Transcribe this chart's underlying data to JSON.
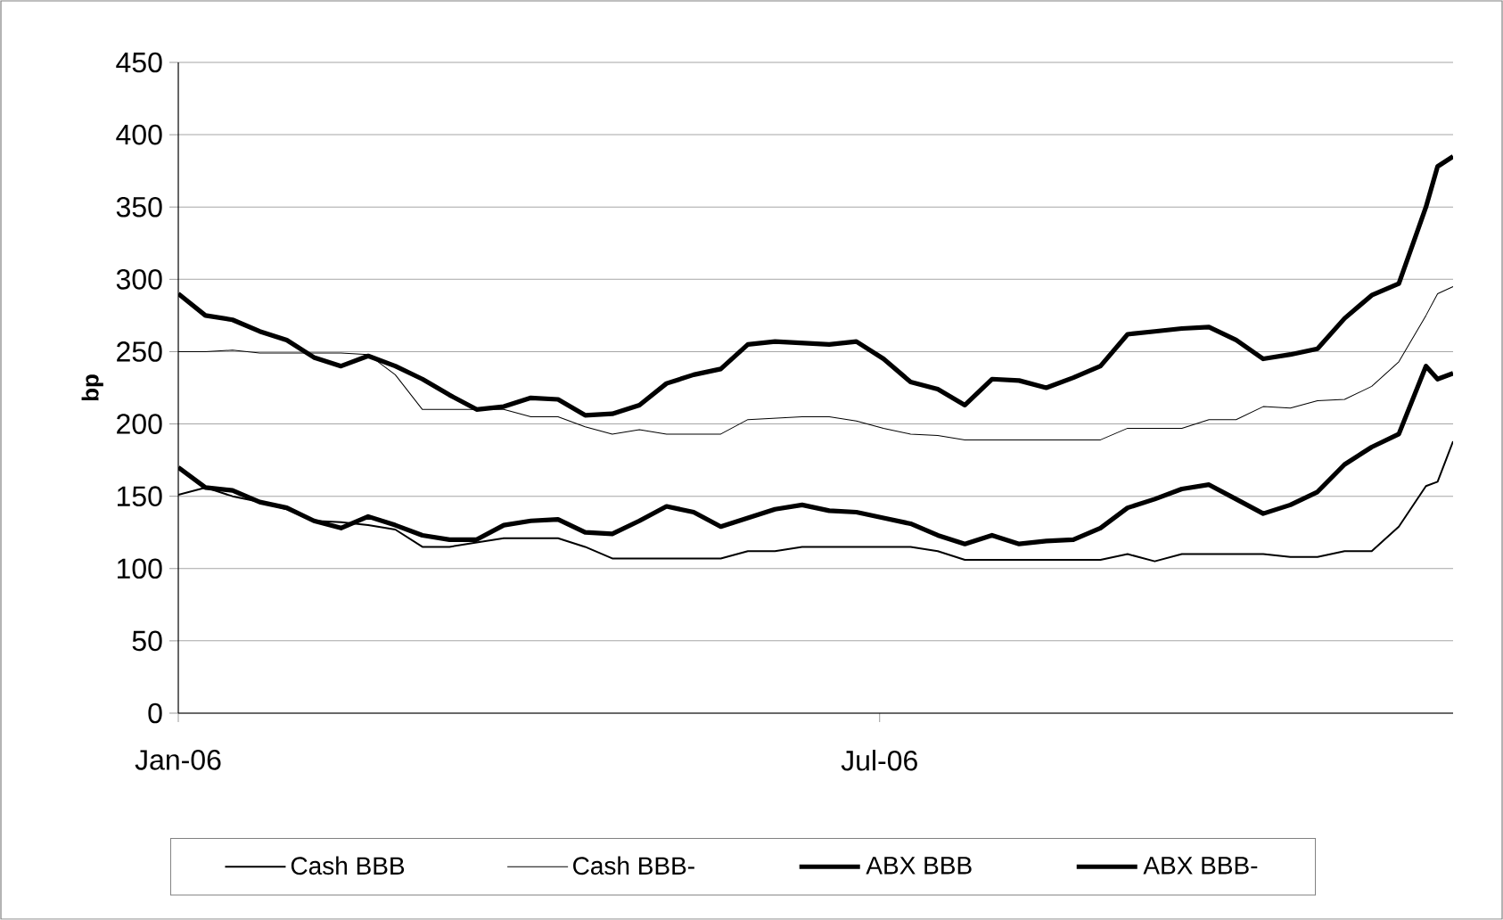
{
  "chart_data": {
    "type": "line",
    "ylabel": "bp",
    "x": [
      "2006-01-01",
      "2006-01-08",
      "2006-01-15",
      "2006-01-22",
      "2006-01-29",
      "2006-02-05",
      "2006-02-12",
      "2006-02-19",
      "2006-02-26",
      "2006-03-05",
      "2006-03-12",
      "2006-03-19",
      "2006-03-26",
      "2006-04-02",
      "2006-04-09",
      "2006-04-16",
      "2006-04-23",
      "2006-04-30",
      "2006-05-07",
      "2006-05-14",
      "2006-05-21",
      "2006-05-28",
      "2006-06-04",
      "2006-06-11",
      "2006-06-18",
      "2006-06-25",
      "2006-07-02",
      "2006-07-09",
      "2006-07-16",
      "2006-07-23",
      "2006-07-30",
      "2006-08-06",
      "2006-08-13",
      "2006-08-20",
      "2006-08-27",
      "2006-09-03",
      "2006-09-10",
      "2006-09-17",
      "2006-09-24",
      "2006-10-01",
      "2006-10-08",
      "2006-10-15",
      "2006-10-22",
      "2006-10-29",
      "2006-11-05",
      "2006-11-12",
      "2006-11-19",
      "2006-11-22",
      "2006-11-26"
    ],
    "series": [
      {
        "name": "Cash BBB",
        "color": "#000000",
        "values": [
          151,
          156,
          150,
          146,
          141,
          133,
          132,
          130,
          127,
          115,
          115,
          118,
          121,
          121,
          121,
          115,
          107,
          107,
          107,
          107,
          107,
          112,
          112,
          115,
          115,
          115,
          115,
          115,
          112,
          106,
          106,
          106,
          106,
          106,
          106,
          110,
          105,
          110,
          110,
          110,
          110,
          108,
          108,
          112,
          112,
          129,
          157,
          160,
          188
        ]
      },
      {
        "name": "Cash BBB-",
        "color": "#000000",
        "values": [
          250,
          250,
          251,
          249,
          249,
          249,
          249,
          248,
          234,
          210,
          210,
          210,
          210,
          205,
          205,
          198,
          193,
          196,
          193,
          193,
          193,
          203,
          204,
          205,
          205,
          202,
          197,
          193,
          192,
          189,
          189,
          189,
          189,
          189,
          189,
          197,
          197,
          197,
          203,
          203,
          212,
          211,
          216,
          217,
          226,
          243,
          275,
          290,
          295
        ]
      },
      {
        "name": "ABX BBB",
        "color": "#000000",
        "values": [
          170,
          156,
          154,
          146,
          142,
          133,
          128,
          136,
          130,
          123,
          120,
          120,
          130,
          133,
          134,
          125,
          124,
          133,
          143,
          139,
          129,
          135,
          141,
          144,
          140,
          139,
          135,
          131,
          123,
          117,
          123,
          117,
          119,
          120,
          128,
          142,
          148,
          155,
          158,
          148,
          138,
          144,
          153,
          172,
          184,
          193,
          240,
          231,
          235
        ]
      },
      {
        "name": "ABX BBB-",
        "color": "#000000",
        "values": [
          290,
          275,
          272,
          264,
          258,
          246,
          240,
          247,
          240,
          231,
          220,
          210,
          212,
          218,
          217,
          206,
          207,
          213,
          228,
          234,
          238,
          255,
          257,
          256,
          255,
          257,
          245,
          229,
          224,
          213,
          231,
          230,
          225,
          232,
          240,
          262,
          264,
          266,
          267,
          258,
          245,
          248,
          252,
          273,
          289,
          297,
          350,
          378,
          385
        ]
      }
    ],
    "xlim": [
      "2006-01-01",
      "2006-11-26"
    ],
    "xticks": [
      {
        "value": "2006-01-01",
        "label": "Jan-06"
      },
      {
        "value": "2006-07-01",
        "label": "Jul-06"
      }
    ],
    "ylim": [
      0,
      450
    ],
    "yticks": [
      0,
      50,
      100,
      150,
      200,
      250,
      300,
      350,
      400,
      450
    ],
    "grid": "y",
    "legend": "bottom"
  }
}
